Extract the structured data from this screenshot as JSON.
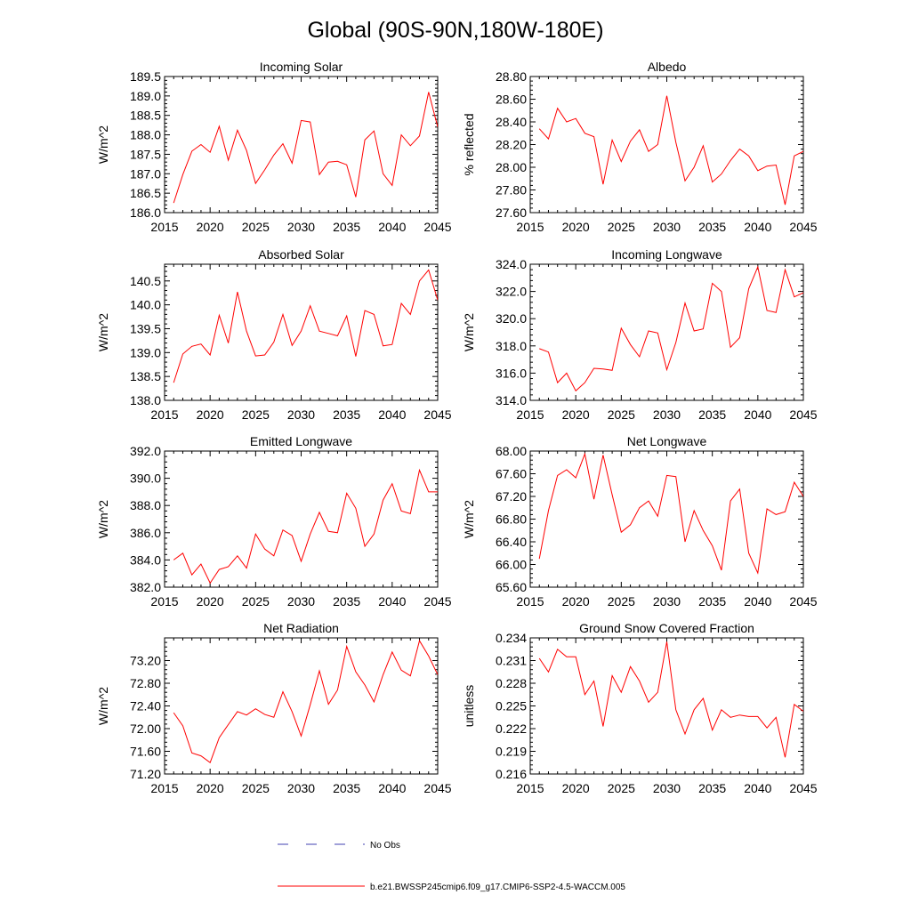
{
  "figure_title": "Global (90S-90N,180W-180E)",
  "colors": {
    "model_line": "#ff0000",
    "obs_line": "#4040b0",
    "axis": "#000000"
  },
  "legend": {
    "obs_label": "No Obs",
    "model_label": "b.e21.BWSSP245cmip6.f09_g17.CMIP6-SSP2-4.5-WACCM.005"
  },
  "chart_data": [
    {
      "type": "line",
      "title": "Incoming Solar",
      "xlabel": "",
      "ylabel": "W/m^2",
      "xlim": [
        2015,
        2045
      ],
      "ylim": [
        186.0,
        189.5
      ],
      "xticks": [
        "2015",
        "2020",
        "2025",
        "2030",
        "2035",
        "2040",
        "2045"
      ],
      "yticks": [
        "186.0",
        "186.5",
        "187.0",
        "187.5",
        "188.0",
        "188.5",
        "189.0",
        "189.5"
      ],
      "x": [
        2016,
        2017,
        2018,
        2019,
        2020,
        2021,
        2022,
        2023,
        2024,
        2025,
        2026,
        2027,
        2028,
        2029,
        2030,
        2031,
        2032,
        2033,
        2034,
        2035,
        2036,
        2037,
        2038,
        2039,
        2040,
        2041,
        2042,
        2043,
        2044,
        2045
      ],
      "series": [
        {
          "name": "b.e21.BWSSP245cmip6.f09_g17.CMIP6-SSP2-4.5-WACCM.005",
          "values": [
            186.25,
            186.98,
            187.58,
            187.75,
            187.55,
            188.22,
            187.35,
            188.12,
            187.6,
            186.75,
            187.1,
            187.48,
            187.77,
            187.27,
            188.37,
            188.33,
            186.98,
            187.3,
            187.32,
            187.23,
            186.4,
            187.87,
            188.1,
            187.0,
            186.7,
            188.0,
            187.72,
            187.97,
            189.1,
            188.2
          ]
        }
      ]
    },
    {
      "type": "line",
      "title": "Albedo",
      "xlabel": "",
      "ylabel": "% reflected",
      "xlim": [
        2015,
        2045
      ],
      "ylim": [
        27.6,
        28.8
      ],
      "xticks": [
        "2015",
        "2020",
        "2025",
        "2030",
        "2035",
        "2040",
        "2045"
      ],
      "yticks": [
        "27.60",
        "27.80",
        "28.00",
        "28.20",
        "28.40",
        "28.60",
        "28.80"
      ],
      "x": [
        2016,
        2017,
        2018,
        2019,
        2020,
        2021,
        2022,
        2023,
        2024,
        2025,
        2026,
        2027,
        2028,
        2029,
        2030,
        2031,
        2032,
        2033,
        2034,
        2035,
        2036,
        2037,
        2038,
        2039,
        2040,
        2041,
        2042,
        2043,
        2044,
        2045
      ],
      "series": [
        {
          "name": "b.e21.BWSSP245cmip6.f09_g17.CMIP6-SSP2-4.5-WACCM.005",
          "values": [
            28.34,
            28.25,
            28.52,
            28.4,
            28.43,
            28.3,
            28.27,
            27.85,
            28.24,
            28.05,
            28.23,
            28.33,
            28.14,
            28.2,
            28.63,
            28.22,
            27.88,
            28.0,
            28.19,
            27.87,
            27.94,
            28.06,
            28.16,
            28.1,
            27.97,
            28.01,
            28.02,
            27.67,
            28.1,
            28.14
          ]
        }
      ]
    },
    {
      "type": "line",
      "title": "Absorbed Solar",
      "xlabel": "",
      "ylabel": "W/m^2",
      "xlim": [
        2015,
        2045
      ],
      "ylim": [
        138.0,
        140.85
      ],
      "xticks": [
        "2015",
        "2020",
        "2025",
        "2030",
        "2035",
        "2040",
        "2045"
      ],
      "yticks": [
        "138.0",
        "138.5",
        "139.0",
        "139.5",
        "140.0",
        "140.5"
      ],
      "x": [
        2016,
        2017,
        2018,
        2019,
        2020,
        2021,
        2022,
        2023,
        2024,
        2025,
        2026,
        2027,
        2028,
        2029,
        2030,
        2031,
        2032,
        2033,
        2034,
        2035,
        2036,
        2037,
        2038,
        2039,
        2040,
        2041,
        2042,
        2043,
        2044,
        2045
      ],
      "series": [
        {
          "name": "b.e21.BWSSP245cmip6.f09_g17.CMIP6-SSP2-4.5-WACCM.005",
          "values": [
            138.37,
            138.97,
            139.13,
            139.18,
            138.95,
            139.78,
            139.2,
            140.27,
            139.45,
            138.93,
            138.95,
            139.22,
            139.8,
            139.15,
            139.45,
            139.98,
            139.45,
            139.4,
            139.35,
            139.77,
            138.92,
            139.88,
            139.8,
            139.14,
            139.17,
            140.03,
            139.8,
            140.5,
            140.73,
            140.1
          ]
        }
      ]
    },
    {
      "type": "line",
      "title": "Incoming Longwave",
      "xlabel": "",
      "ylabel": "W/m^2",
      "xlim": [
        2015,
        2045
      ],
      "ylim": [
        314.0,
        324.0
      ],
      "xticks": [
        "2015",
        "2020",
        "2025",
        "2030",
        "2035",
        "2040",
        "2045"
      ],
      "yticks": [
        "314.0",
        "316.0",
        "318.0",
        "320.0",
        "322.0",
        "324.0"
      ],
      "x": [
        2016,
        2017,
        2018,
        2019,
        2020,
        2021,
        2022,
        2023,
        2024,
        2025,
        2026,
        2027,
        2028,
        2029,
        2030,
        2031,
        2032,
        2033,
        2034,
        2035,
        2036,
        2037,
        2038,
        2039,
        2040,
        2041,
        2042,
        2043,
        2044,
        2045
      ],
      "series": [
        {
          "name": "b.e21.BWSSP245cmip6.f09_g17.CMIP6-SSP2-4.5-WACCM.005",
          "values": [
            317.8,
            317.55,
            315.3,
            316.0,
            314.7,
            315.3,
            316.35,
            316.3,
            316.2,
            319.3,
            318.1,
            317.2,
            319.1,
            318.95,
            316.25,
            318.25,
            321.15,
            319.1,
            319.25,
            322.6,
            322.0,
            317.9,
            318.6,
            322.2,
            323.8,
            320.6,
            320.45,
            323.6,
            321.6,
            321.9
          ]
        }
      ]
    },
    {
      "type": "line",
      "title": "Emitted Longwave",
      "xlabel": "",
      "ylabel": "W/m^2",
      "xlim": [
        2015,
        2045
      ],
      "ylim": [
        382.0,
        392.0
      ],
      "xticks": [
        "2015",
        "2020",
        "2025",
        "2030",
        "2035",
        "2040",
        "2045"
      ],
      "yticks": [
        "382.0",
        "384.0",
        "386.0",
        "388.0",
        "390.0",
        "392.0"
      ],
      "x": [
        2016,
        2017,
        2018,
        2019,
        2020,
        2021,
        2022,
        2023,
        2024,
        2025,
        2026,
        2027,
        2028,
        2029,
        2030,
        2031,
        2032,
        2033,
        2034,
        2035,
        2036,
        2037,
        2038,
        2039,
        2040,
        2041,
        2042,
        2043,
        2044,
        2045
      ],
      "series": [
        {
          "name": "b.e21.BWSSP245cmip6.f09_g17.CMIP6-SSP2-4.5-WACCM.005",
          "values": [
            384.0,
            384.5,
            382.9,
            383.7,
            382.3,
            383.3,
            383.5,
            384.3,
            383.4,
            385.9,
            384.8,
            384.3,
            386.2,
            385.8,
            383.9,
            385.9,
            387.5,
            386.1,
            386.0,
            388.9,
            387.8,
            385.0,
            385.9,
            388.4,
            389.6,
            387.6,
            387.4,
            390.6,
            389.0,
            389.0
          ]
        }
      ]
    },
    {
      "type": "line",
      "title": "Net Longwave",
      "xlabel": "",
      "ylabel": "W/m^2",
      "xlim": [
        2015,
        2045
      ],
      "ylim": [
        65.6,
        68.0
      ],
      "xticks": [
        "2015",
        "2020",
        "2025",
        "2030",
        "2035",
        "2040",
        "2045"
      ],
      "yticks": [
        "65.60",
        "66.00",
        "66.40",
        "66.80",
        "67.20",
        "67.60",
        "68.00"
      ],
      "x": [
        2016,
        2017,
        2018,
        2019,
        2020,
        2021,
        2022,
        2023,
        2024,
        2025,
        2026,
        2027,
        2028,
        2029,
        2030,
        2031,
        2032,
        2033,
        2034,
        2035,
        2036,
        2037,
        2038,
        2039,
        2040,
        2041,
        2042,
        2043,
        2044,
        2045
      ],
      "series": [
        {
          "name": "b.e21.BWSSP245cmip6.f09_g17.CMIP6-SSP2-4.5-WACCM.005",
          "values": [
            66.1,
            66.95,
            67.57,
            67.67,
            67.53,
            67.95,
            67.15,
            67.93,
            67.23,
            66.57,
            66.7,
            67.0,
            67.12,
            66.85,
            67.57,
            67.55,
            66.4,
            66.95,
            66.6,
            66.33,
            65.9,
            67.12,
            67.33,
            66.2,
            65.85,
            66.98,
            66.88,
            66.93,
            67.45,
            67.2
          ]
        }
      ]
    },
    {
      "type": "line",
      "title": "Net Radiation",
      "xlabel": "",
      "ylabel": "W/m^2",
      "xlim": [
        2015,
        2045
      ],
      "ylim": [
        71.2,
        73.6
      ],
      "xticks": [
        "2015",
        "2020",
        "2025",
        "2030",
        "2035",
        "2040",
        "2045"
      ],
      "yticks": [
        "71.20",
        "71.60",
        "72.00",
        "72.40",
        "72.80",
        "73.20"
      ],
      "x": [
        2016,
        2017,
        2018,
        2019,
        2020,
        2021,
        2022,
        2023,
        2024,
        2025,
        2026,
        2027,
        2028,
        2029,
        2030,
        2031,
        2032,
        2033,
        2034,
        2035,
        2036,
        2037,
        2038,
        2039,
        2040,
        2041,
        2042,
        2043,
        2044,
        2045
      ],
      "series": [
        {
          "name": "b.e21.BWSSP245cmip6.f09_g17.CMIP6-SSP2-4.5-WACCM.005",
          "values": [
            72.28,
            72.05,
            71.57,
            71.52,
            71.4,
            71.84,
            72.07,
            72.3,
            72.24,
            72.35,
            72.25,
            72.2,
            72.65,
            72.3,
            71.87,
            72.42,
            73.02,
            72.43,
            72.68,
            73.45,
            73.0,
            72.77,
            72.47,
            72.95,
            73.35,
            73.03,
            72.93,
            73.55,
            73.28,
            72.95
          ]
        }
      ]
    },
    {
      "type": "line",
      "title": "Ground Snow Covered Fraction",
      "xlabel": "",
      "ylabel": "unitless",
      "xlim": [
        2015,
        2045
      ],
      "ylim": [
        0.216,
        0.234
      ],
      "xticks": [
        "2015",
        "2020",
        "2025",
        "2030",
        "2035",
        "2040",
        "2045"
      ],
      "yticks": [
        "0.216",
        "0.219",
        "0.222",
        "0.225",
        "0.228",
        "0.231",
        "0.234"
      ],
      "x": [
        2016,
        2017,
        2018,
        2019,
        2020,
        2021,
        2022,
        2023,
        2024,
        2025,
        2026,
        2027,
        2028,
        2029,
        2030,
        2031,
        2032,
        2033,
        2034,
        2035,
        2036,
        2037,
        2038,
        2039,
        2040,
        2041,
        2042,
        2043,
        2044,
        2045
      ],
      "series": [
        {
          "name": "b.e21.BWSSP245cmip6.f09_g17.CMIP6-SSP2-4.5-WACCM.005",
          "values": [
            0.2313,
            0.2295,
            0.2325,
            0.2315,
            0.2315,
            0.2265,
            0.2283,
            0.2223,
            0.229,
            0.2268,
            0.2302,
            0.2283,
            0.2255,
            0.2268,
            0.2335,
            0.2245,
            0.2213,
            0.2245,
            0.226,
            0.2218,
            0.2245,
            0.2235,
            0.2238,
            0.2236,
            0.2236,
            0.2221,
            0.2235,
            0.2182,
            0.2252,
            0.2243
          ]
        }
      ]
    }
  ]
}
